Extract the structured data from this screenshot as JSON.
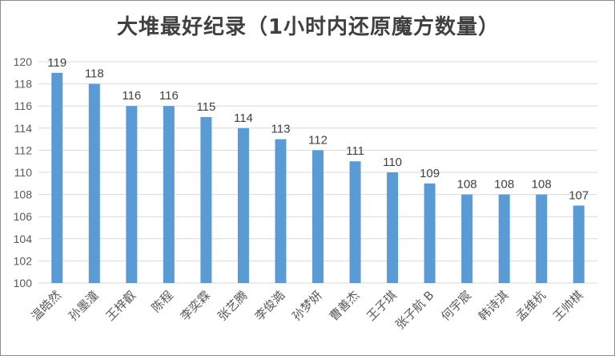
{
  "chart_data": {
    "type": "bar",
    "title": "大堆最好纪录（1小时内还原魔方数量）",
    "categories": [
      "温皓然",
      "孙墨潼",
      "王梓叡",
      "陈程",
      "李奕霖",
      "张艺腾",
      "李俊澔",
      "孙梦妍",
      "曹善杰",
      "王子琪",
      "张子航 B",
      "何宇宸",
      "韩诗淇",
      "孟维杭",
      "王帅棋"
    ],
    "values": [
      119,
      118,
      116,
      116,
      115,
      114,
      113,
      112,
      111,
      110,
      109,
      108,
      108,
      108,
      107
    ],
    "ylim": [
      100,
      120
    ],
    "y_ticks": [
      100,
      102,
      104,
      106,
      108,
      110,
      112,
      114,
      116,
      118,
      120
    ],
    "xlabel": "",
    "ylabel": "",
    "grid": true,
    "legend": "none",
    "bar_color": "#5b9bd5",
    "grid_color": "#d9d9d9"
  }
}
